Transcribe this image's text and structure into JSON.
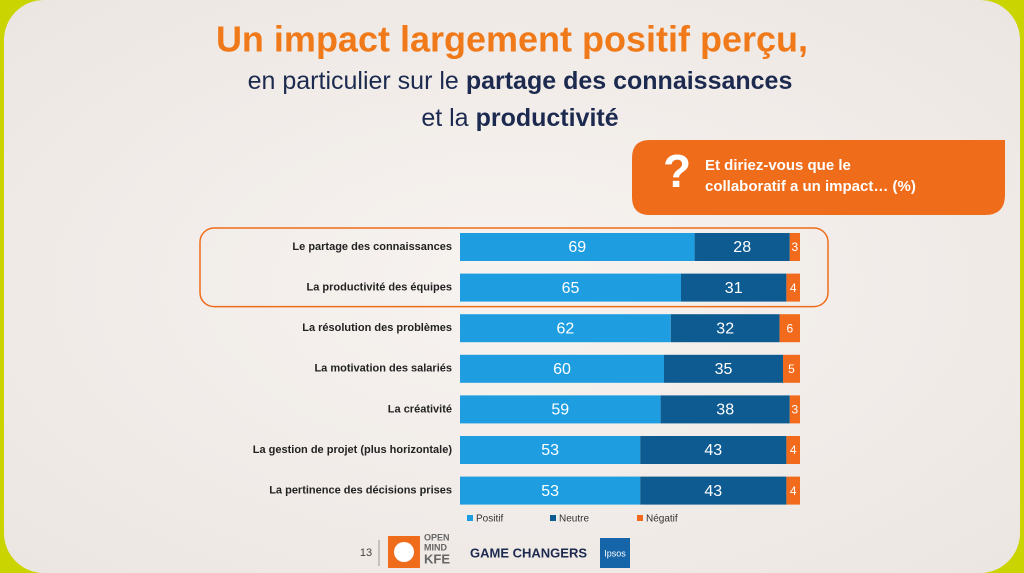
{
  "chart_data": {
    "type": "stacked_barh",
    "title": "Un impact largement positif perçu,",
    "subtitle_lines": [
      [
        "en particulier sur le",
        "partage des connaissances"
      ],
      [
        "et la",
        "productivité"
      ]
    ],
    "question_mark": "?",
    "question": [
      "Et diriez-vous que le",
      "collaboratif a un impact… (%)"
    ],
    "categories": [
      "Le partage des connaissances",
      "La productivité des équipes",
      "La résolution des problèmes",
      "La motivation des salariés",
      "La créativité",
      "La gestion de projet (plus horizontale)",
      "La pertinence des décisions prises"
    ],
    "series": [
      {
        "name": "Positif",
        "color": "#1e9ee0",
        "values": [
          69,
          65,
          62,
          60,
          59,
          53,
          53
        ]
      },
      {
        "name": "Neutre",
        "color": "#0e5b92",
        "values": [
          28,
          31,
          32,
          35,
          38,
          43,
          43
        ]
      },
      {
        "name": "Négatif",
        "color": "#f26b1d",
        "values": [
          3,
          4,
          6,
          5,
          3,
          4,
          4
        ]
      }
    ],
    "highlighted_rows": [
      0,
      1
    ],
    "footer": {
      "page": "13",
      "logo_lines": [
        "OPEN",
        "MIND",
        "KFE"
      ],
      "tagline": "GAME CHANGERS",
      "partner": "Ipsos"
    }
  }
}
